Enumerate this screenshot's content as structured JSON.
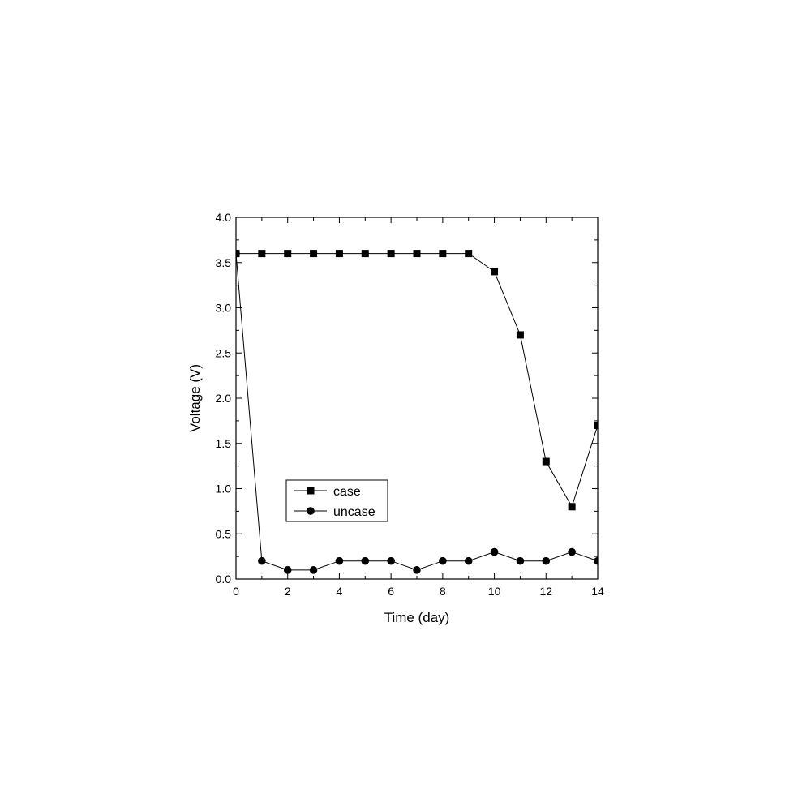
{
  "chart_data": {
    "type": "line",
    "title": "",
    "xlabel": "Time (day)",
    "ylabel": "Voltage (V)",
    "xlim": [
      0,
      14
    ],
    "ylim": [
      0.0,
      4.0
    ],
    "x_ticks": [
      0,
      2,
      4,
      6,
      8,
      10,
      12,
      14
    ],
    "x_tick_labels": [
      "0",
      "2",
      "4",
      "6",
      "8",
      "10",
      "12",
      "14"
    ],
    "y_ticks": [
      0.0,
      0.5,
      1.0,
      1.5,
      2.0,
      2.5,
      3.0,
      3.5,
      4.0
    ],
    "y_tick_labels": [
      "0.0",
      "0.5",
      "1.0",
      "1.5",
      "2.0",
      "2.5",
      "3.0",
      "3.5",
      "4.0"
    ],
    "grid": false,
    "legend_position": "lower-left",
    "x": [
      0,
      1,
      2,
      3,
      4,
      5,
      6,
      7,
      8,
      9,
      10,
      11,
      12,
      13,
      14
    ],
    "series": [
      {
        "name": "case",
        "marker": "square",
        "color": "#000000",
        "values": [
          3.6,
          3.6,
          3.6,
          3.6,
          3.6,
          3.6,
          3.6,
          3.6,
          3.6,
          3.6,
          3.4,
          2.7,
          1.3,
          0.8,
          1.7
        ]
      },
      {
        "name": "uncase",
        "marker": "circle",
        "color": "#000000",
        "values": [
          3.6,
          0.2,
          0.1,
          0.1,
          0.2,
          0.2,
          0.2,
          0.1,
          0.2,
          0.2,
          0.3,
          0.2,
          0.2,
          0.3,
          0.2
        ]
      }
    ]
  }
}
